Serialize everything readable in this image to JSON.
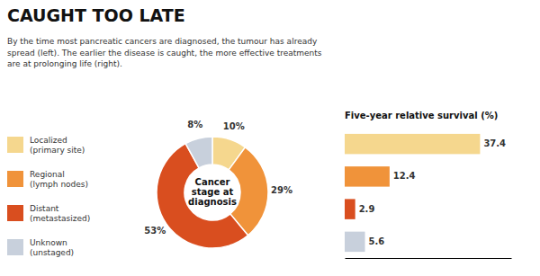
{
  "chart_data": [
    {
      "type": "pie",
      "title": "CAUGHT TOO LATE",
      "subtitle": "By the time most pancreatic cancers are diagnosed, the tumour has already\nspread (left). The earlier the disease is caught, the more effective treatments\nare at prolonging life (right).",
      "annotation": "Cancer\nstage at\ndiagnosis",
      "categories": [
        "Localized\n(primary site)",
        "Regional\n(lymph nodes)",
        "Distant\n(metastasized)",
        "Unknown\n(unstaged)"
      ],
      "values": [
        10,
        29,
        53,
        8
      ],
      "value_labels": [
        "10%",
        "29%",
        "53%",
        "8%"
      ],
      "data_labels": true,
      "colors": [
        "#F5D78E",
        "#F0933A",
        "#D94E1F",
        "#C8D0DC"
      ],
      "legend": "lower left"
    },
    {
      "type": "bar",
      "title": "Five-year relative survival (%)",
      "orientation": "horizontal",
      "categories": [
        null,
        null,
        null,
        null
      ],
      "values": [
        37.4,
        12.4,
        2.9,
        5.6
      ],
      "colors": [
        "#F5D78E",
        "#F0933A",
        "#D94E1F",
        "#C8D0DC"
      ],
      "data_labels": true,
      "xlim": [
        0,
        46
      ],
      "tick_labels": false
    }
  ]
}
